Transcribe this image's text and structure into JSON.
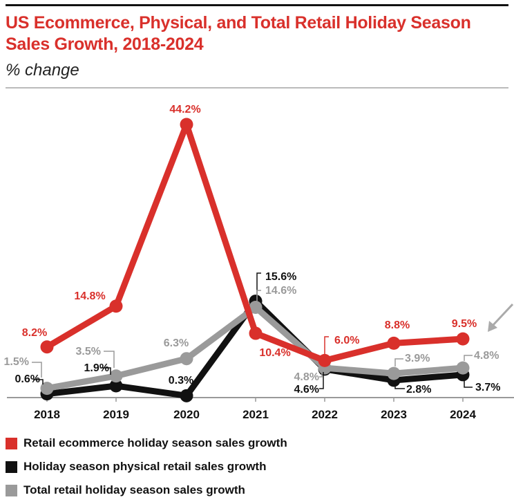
{
  "chart_data": {
    "type": "line",
    "title": "US Ecommerce, Physical, and Total Retail Holiday Season Sales Growth, 2018-2024",
    "subtitle": "% change",
    "categories": [
      "2018",
      "2019",
      "2020",
      "2021",
      "2022",
      "2023",
      "2024"
    ],
    "ylim": [
      0,
      45
    ],
    "grid": false,
    "legend_position": "bottom",
    "series": [
      {
        "name": "Retail ecommerce holiday season sales growth",
        "color": "#d9302b",
        "values": [
          8.2,
          14.8,
          44.2,
          10.4,
          6.0,
          8.8,
          9.5
        ],
        "labels": [
          "8.2%",
          "14.8%",
          "44.2%",
          "10.4%",
          "6.0%",
          "8.8%",
          "9.5%"
        ]
      },
      {
        "name": "Holiday season physical retail sales growth",
        "color": "#111111",
        "values": [
          0.6,
          1.9,
          0.3,
          15.6,
          4.6,
          2.8,
          3.7
        ],
        "labels": [
          "0.6%",
          "1.9%",
          "0.3%",
          "15.6%",
          "4.6%",
          "2.8%",
          "3.7%"
        ]
      },
      {
        "name": "Total retail holiday season sales growth",
        "color": "#9a9a9a",
        "values": [
          1.5,
          3.5,
          6.3,
          14.6,
          4.8,
          3.9,
          4.8
        ],
        "labels": [
          "1.5%",
          "3.5%",
          "6.3%",
          "14.6%",
          "4.8%",
          "3.9%",
          "4.8%"
        ]
      }
    ]
  }
}
